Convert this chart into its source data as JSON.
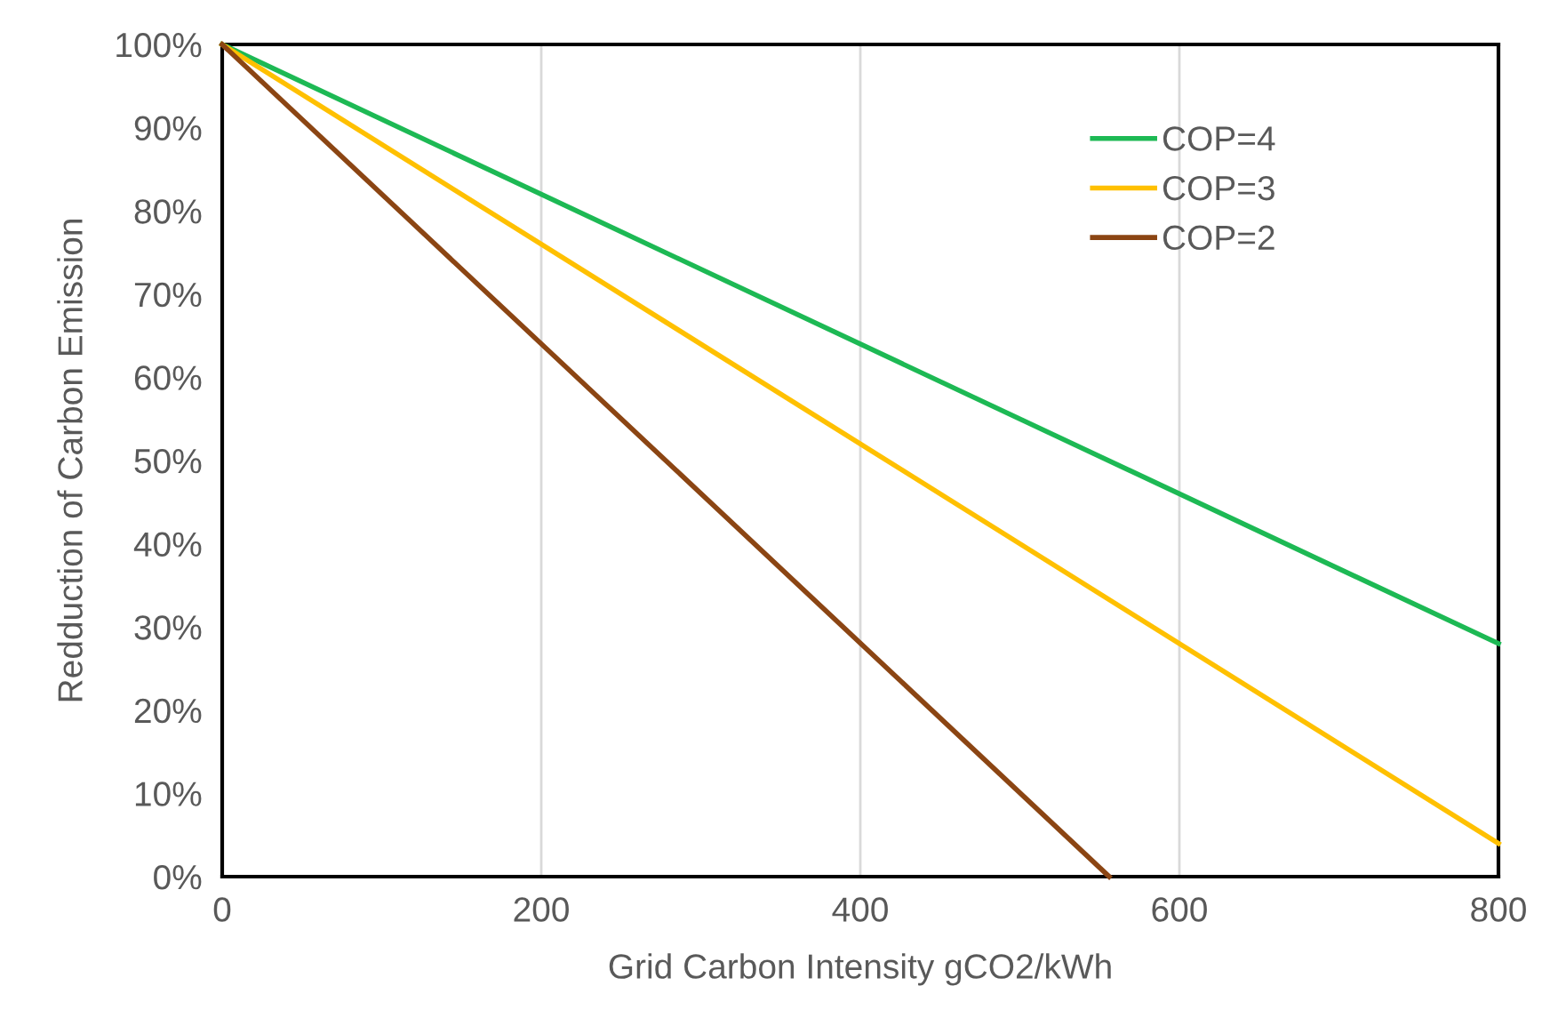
{
  "chart_data": {
    "type": "line",
    "xlabel": "Grid Carbon Intensity gCO2/kWh",
    "ylabel": "Redduction of Carbon Emission",
    "xlim": [
      0,
      800
    ],
    "xticks": [
      0,
      200,
      400,
      600,
      800
    ],
    "ylim": [
      0,
      100
    ],
    "yticks": [
      {
        "value": 0,
        "label": "0%"
      },
      {
        "value": 10,
        "label": "10%"
      },
      {
        "value": 20,
        "label": "20%"
      },
      {
        "value": 30,
        "label": "30%"
      },
      {
        "value": 40,
        "label": "40%"
      },
      {
        "value": 50,
        "label": "50%"
      },
      {
        "value": 60,
        "label": "60%"
      },
      {
        "value": 70,
        "label": "70%"
      },
      {
        "value": 80,
        "label": "80%"
      },
      {
        "value": 90,
        "label": "90%"
      },
      {
        "value": 100,
        "label": "100%"
      }
    ],
    "grid": "x",
    "legend": "top right",
    "marker": "none",
    "line_style": "solid",
    "series": [
      {
        "name": "COP=4",
        "color": "#1db954",
        "x": [
          0,
          800
        ],
        "values": [
          100,
          28
        ]
      },
      {
        "name": "COP=3",
        "color": "#ffc000",
        "x": [
          0,
          800
        ],
        "values": [
          100,
          4
        ]
      },
      {
        "name": "COP=2",
        "color": "#8b4513",
        "x": [
          0,
          556
        ],
        "values": [
          100,
          0
        ]
      }
    ]
  }
}
